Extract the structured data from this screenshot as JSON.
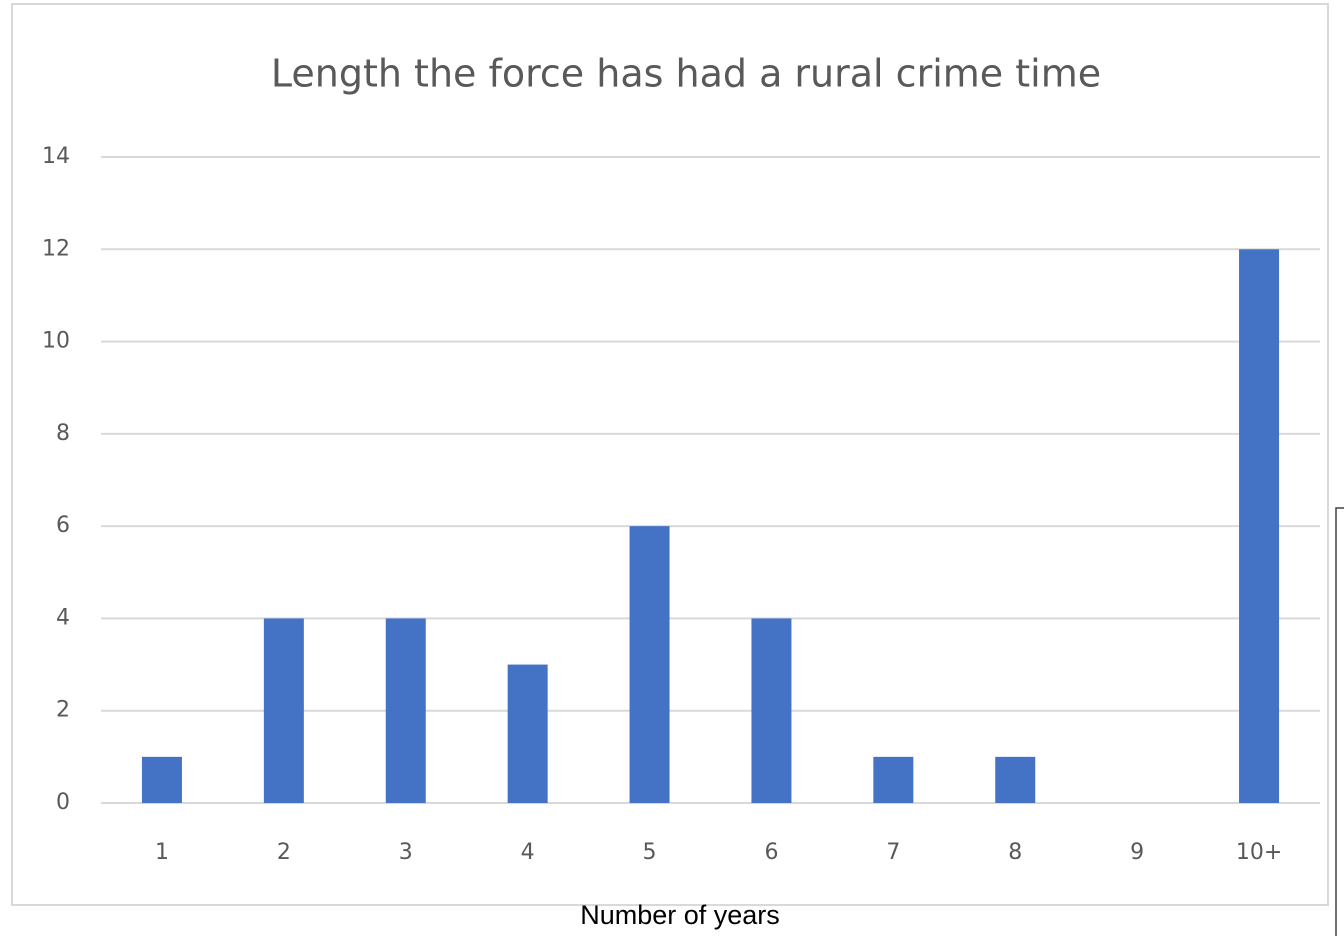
{
  "chart_data": {
    "type": "bar",
    "title": "Length the force has had a rural crime time",
    "x_label": "Number of years",
    "categories": [
      "1",
      "2",
      "3",
      "4",
      "5",
      "6",
      "7",
      "8",
      "9",
      "10+"
    ],
    "values": [
      1,
      4,
      4,
      3,
      6,
      4,
      1,
      1,
      0,
      12
    ],
    "color": "#4472c4",
    "ylim": [
      0,
      14
    ],
    "yticks": [
      0,
      2,
      4,
      6,
      8,
      10,
      12,
      14
    ],
    "grid": true
  }
}
